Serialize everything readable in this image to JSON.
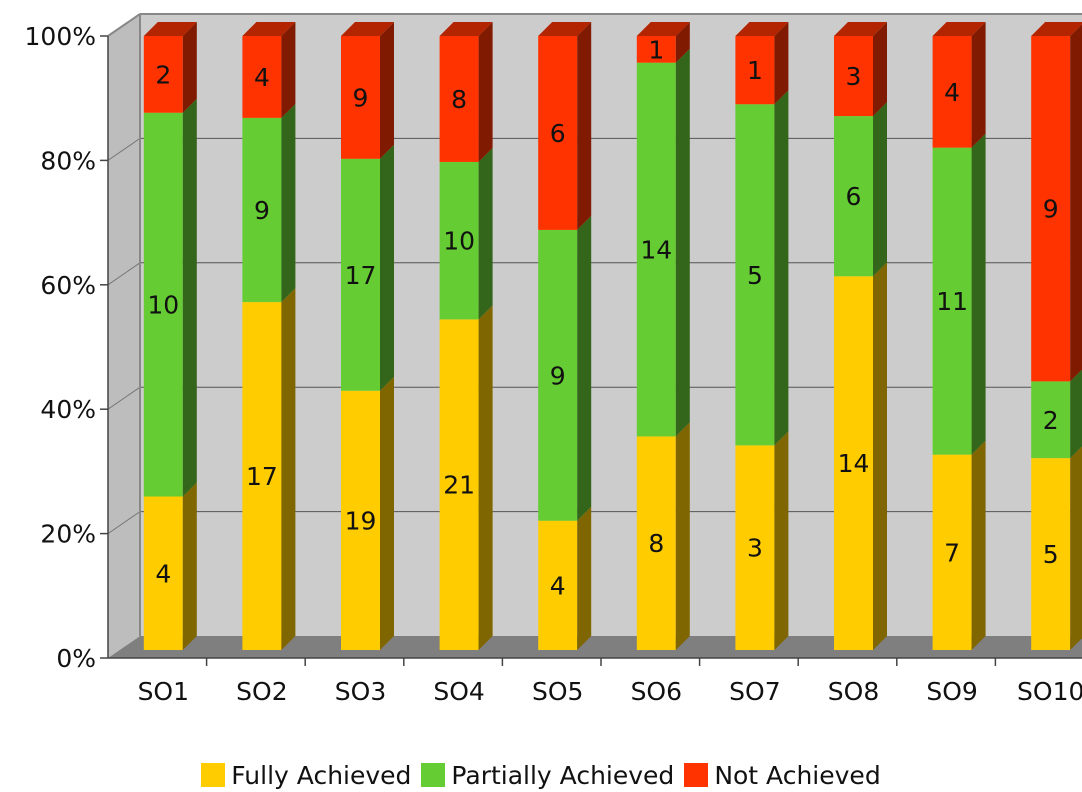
{
  "chart_data": {
    "type": "bar",
    "stacked": "percent",
    "three_d": true,
    "categories": [
      "SO1",
      "SO2",
      "SO3",
      "SO4",
      "SO5",
      "SO6",
      "SO7",
      "SO8",
      "SO9",
      "SO10"
    ],
    "series": [
      {
        "name": "Fully Achieved",
        "color": "#FFCC00",
        "values": [
          4,
          17,
          19,
          21,
          4,
          8,
          3,
          14,
          7,
          5
        ]
      },
      {
        "name": "Partially Achieved",
        "color": "#66CC33",
        "values": [
          10,
          9,
          17,
          10,
          9,
          14,
          5,
          6,
          11,
          2
        ]
      },
      {
        "name": "Not Achieved",
        "color": "#FF3300",
        "values": [
          2,
          4,
          9,
          8,
          6,
          1,
          1,
          3,
          4,
          9
        ]
      }
    ],
    "y_ticks": [
      "0%",
      "20%",
      "40%",
      "60%",
      "80%",
      "100%"
    ],
    "ylim": [
      0,
      100
    ],
    "grid": true,
    "legend_position": "bottom"
  }
}
